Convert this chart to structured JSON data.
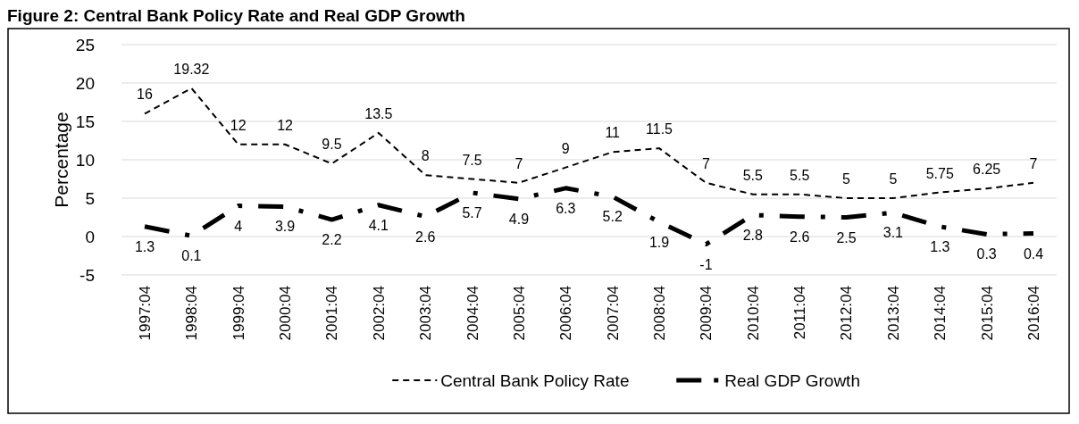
{
  "chart_data": {
    "type": "line",
    "title": "Figure 2: Central Bank Policy Rate and Real GDP Growth",
    "ylabel": "Percentage",
    "categories": [
      "1997:04",
      "1998:04",
      "1999:04",
      "2000:04",
      "2001:04",
      "2002:04",
      "2003:04",
      "2004:04",
      "2005:04",
      "2006:04",
      "2007:04",
      "2008:04",
      "2009:04",
      "2010:04",
      "2011:04",
      "2012:04",
      "2013:04",
      "2014:04",
      "2015:04",
      "2016:04"
    ],
    "series": [
      {
        "name": "Central Bank Policy Rate",
        "color": "#000000",
        "line_style": "dashed",
        "values": [
          16,
          19.32,
          12,
          12,
          9.5,
          13.5,
          8,
          7.5,
          7,
          9,
          11,
          11.5,
          7,
          5.5,
          5.5,
          5,
          5,
          5.75,
          6.25,
          7
        ]
      },
      {
        "name": "Real GDP Growth",
        "color": "#000000",
        "line_style": "dashed",
        "values": [
          1.3,
          0.1,
          4,
          3.9,
          2.2,
          4.1,
          2.6,
          5.7,
          4.9,
          6.3,
          5.2,
          1.9,
          -1,
          2.8,
          2.6,
          2.5,
          3.1,
          1.3,
          0.3,
          0.4
        ]
      }
    ],
    "ylim": [
      -5,
      25
    ],
    "yticks": [
      -5,
      0,
      5,
      10,
      15,
      20,
      25
    ],
    "grid": "y",
    "legend": "bottom",
    "data_labels": true,
    "marker": "none"
  }
}
